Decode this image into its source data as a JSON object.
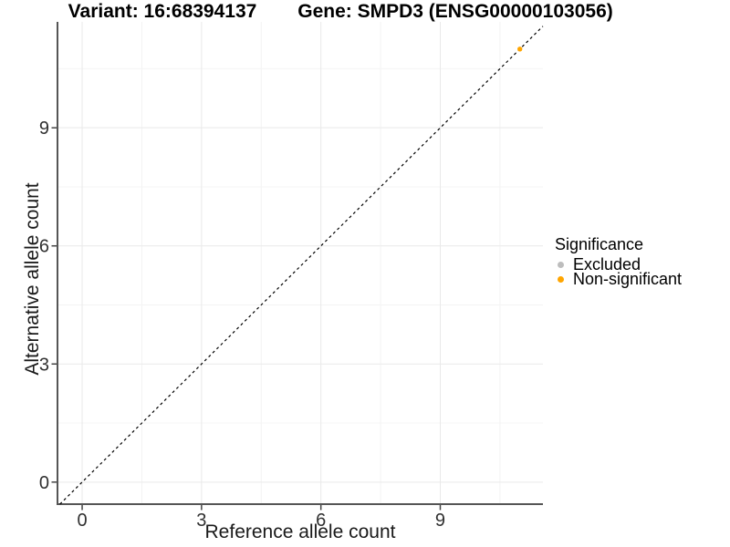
{
  "header": {
    "variant_title": "Variant: 16:68394137",
    "gene_title": "Gene: SMPD3 (ENSG00000103056)"
  },
  "chart_data": {
    "type": "scatter",
    "title": "Variant: 16:68394137 / Gene: SMPD3 (ENSG00000103056)",
    "xlabel": "Reference allele count",
    "ylabel": "Alternative allele count",
    "xlim": [
      -0.62,
      11.58
    ],
    "ylim": [
      -0.56,
      11.69
    ],
    "x_ticks": [
      0,
      3,
      6,
      9
    ],
    "y_ticks": [
      0,
      3,
      6,
      9
    ],
    "x_minor_ticks": [
      1.5,
      4.5,
      7.5,
      10.5
    ],
    "y_minor_ticks": [
      1.5,
      4.5,
      7.5,
      10.5
    ],
    "grid": "major and minor, light gray on white",
    "identity_line": {
      "slope": 1,
      "intercept": 0,
      "style": "dashed",
      "color": "#000000"
    },
    "series": [
      {
        "name": "Excluded",
        "color": "#BDBDBD",
        "points": []
      },
      {
        "name": "Non-significant",
        "color": "#FFA500",
        "points": [
          {
            "x": 11,
            "y": 11
          }
        ]
      }
    ],
    "legend": {
      "title": "Significance",
      "position": "right"
    }
  },
  "colors": {
    "background": "#FFFFFF",
    "axis_line": "#555555",
    "tick_mark": "#444444",
    "tick_label": "#303030",
    "major_grid": "#E9E9E9",
    "minor_grid": "#F4F4F4",
    "title_text": "#000000",
    "excluded": "#BDBDBD",
    "non_significant": "#FFA500"
  }
}
